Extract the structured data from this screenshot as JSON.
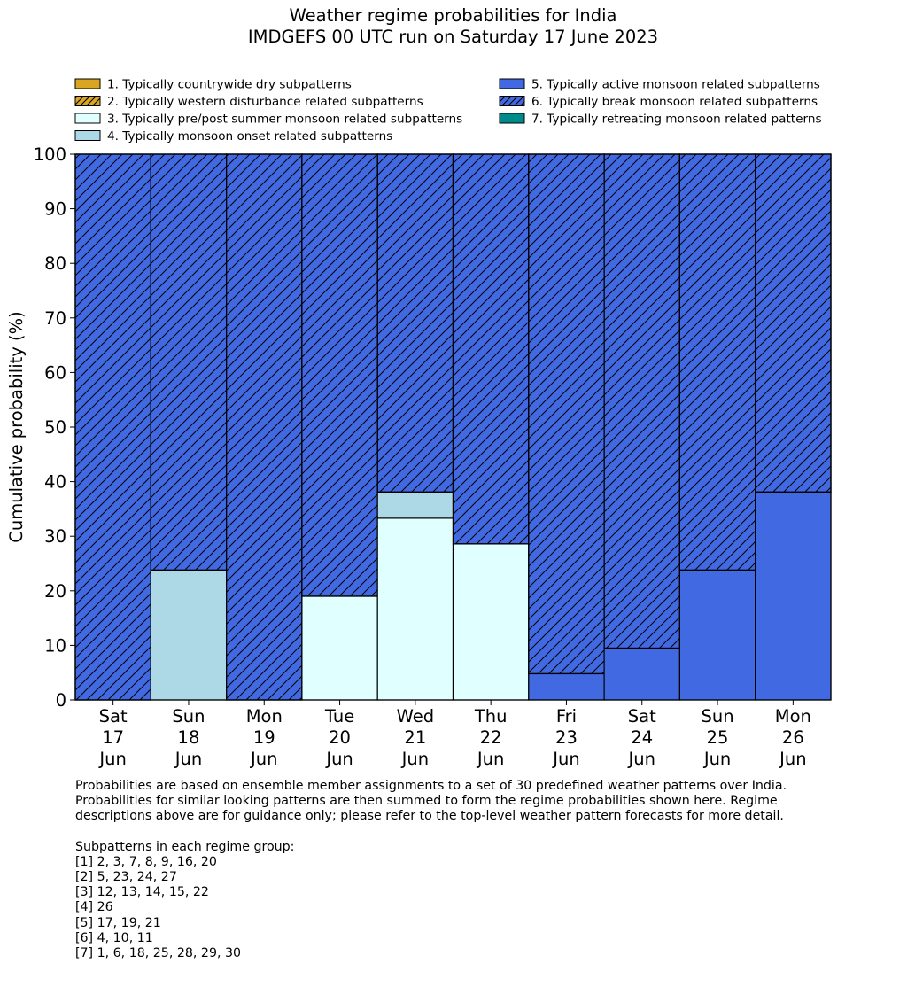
{
  "colors": {
    "regime_1": "#DAA520",
    "regime_2": "#DAA520",
    "regime_3": "#E0FFFF",
    "regime_4": "#ADD8E6",
    "regime_5": "#4169E1",
    "regime_6": "#4169E1",
    "regime_7": "#008B8B"
  },
  "chart_data": {
    "type": "bar",
    "stacked": true,
    "title": "Weather regime probabilities for India",
    "subtitle": "IMDGEFS 00 UTC run on Saturday 17 June 2023",
    "ylabel": "Cumulative probability (%)",
    "xlabel": "",
    "ylim": [
      0,
      100
    ],
    "yticks": [
      0,
      10,
      20,
      30,
      40,
      50,
      60,
      70,
      80,
      90,
      100
    ],
    "grid": false,
    "legend_position": "top",
    "categories": [
      [
        "Sat",
        "17",
        "Jun"
      ],
      [
        "Sun",
        "18",
        "Jun"
      ],
      [
        "Mon",
        "19",
        "Jun"
      ],
      [
        "Tue",
        "20",
        "Jun"
      ],
      [
        "Wed",
        "21",
        "Jun"
      ],
      [
        "Thu",
        "22",
        "Jun"
      ],
      [
        "Fri",
        "23",
        "Jun"
      ],
      [
        "Sat",
        "24",
        "Jun"
      ],
      [
        "Sun",
        "25",
        "Jun"
      ],
      [
        "Mon",
        "26",
        "Jun"
      ]
    ],
    "series": [
      {
        "name": "1. Typically countrywide dry subpatterns",
        "hatched": false,
        "values": [
          0,
          0,
          0,
          0,
          0,
          0,
          0,
          0,
          0,
          0
        ]
      },
      {
        "name": "2. Typically western disturbance related subpatterns",
        "hatched": true,
        "values": [
          0,
          0,
          0,
          0,
          0,
          0,
          0,
          0,
          0,
          0
        ]
      },
      {
        "name": "3. Typically pre/post summer monsoon related subpatterns",
        "hatched": false,
        "values": [
          0,
          0,
          0,
          19.0,
          33.3,
          28.6,
          0,
          0,
          0,
          0
        ]
      },
      {
        "name": "4. Typically monsoon onset related subpatterns",
        "hatched": false,
        "values": [
          0,
          23.8,
          0,
          0,
          4.8,
          0,
          0,
          0,
          0,
          0
        ]
      },
      {
        "name": "5. Typically active monsoon related subpatterns",
        "hatched": false,
        "values": [
          0,
          0,
          0,
          0,
          0,
          0,
          4.8,
          9.5,
          23.8,
          38.1
        ]
      },
      {
        "name": "6. Typically break monsoon related subpatterns",
        "hatched": true,
        "values": [
          100,
          76.2,
          100,
          81.0,
          61.9,
          71.4,
          95.2,
          90.5,
          76.2,
          61.9
        ]
      },
      {
        "name": "7. Typically retreating monsoon related patterns",
        "hatched": false,
        "values": [
          0,
          0,
          0,
          0,
          0,
          0,
          0,
          0,
          0,
          0
        ]
      }
    ]
  },
  "footnote": {
    "paragraph": [
      "Probabilities are based on ensemble member assignments to a set of 30 predefined weather patterns over India.",
      "Probabilities for similar looking patterns are then summed to form the regime probabilities shown here. Regime",
      "descriptions above are for guidance only; please refer to the top-level weather pattern forecasts for more detail."
    ],
    "groups_heading": "Subpatterns in each regime group:",
    "groups": [
      "[1] 2, 3, 7, 8, 9, 16, 20",
      "[2] 5, 23, 24, 27",
      "[3] 12, 13, 14, 15, 22",
      "[4] 26",
      "[5] 17, 19, 21",
      "[6] 4, 10, 11",
      "[7] 1, 6, 18, 25, 28, 29, 30"
    ]
  }
}
